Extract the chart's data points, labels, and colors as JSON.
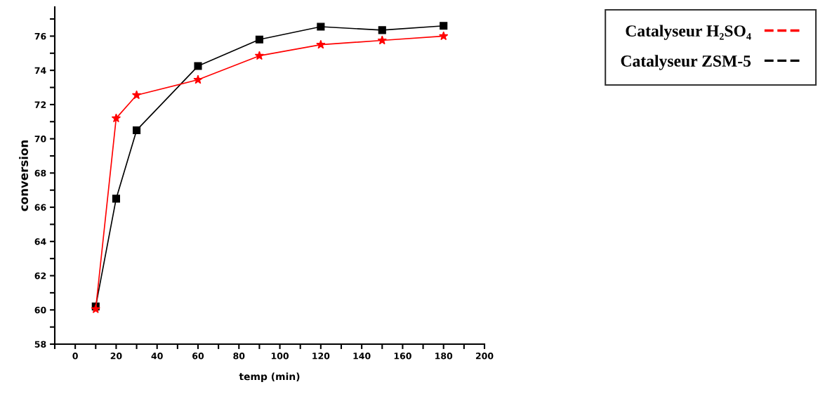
{
  "chart_data": {
    "type": "line",
    "xlabel": "temp (min)",
    "ylabel": "conversion",
    "x": [
      10,
      20,
      30,
      60,
      90,
      120,
      150,
      180
    ],
    "series": [
      {
        "name": "Catalyseur H₂SO₄",
        "color": "#ff0000",
        "marker": "star",
        "values": [
          60.05,
          71.2,
          72.55,
          73.45,
          74.85,
          75.5,
          75.75,
          76.0
        ]
      },
      {
        "name": "Catalyseur ZSM-5",
        "color": "#000000",
        "marker": "square",
        "values": [
          60.2,
          66.5,
          70.5,
          74.25,
          75.8,
          76.55,
          76.35,
          76.6
        ]
      }
    ],
    "xlim": [
      -10,
      200
    ],
    "ylim": [
      58,
      77.7
    ],
    "xticks": [
      {
        "value": -10,
        "label": null
      },
      0,
      {
        "value": 10,
        "label": null
      },
      20,
      {
        "value": 30,
        "label": null
      },
      40,
      {
        "value": 50,
        "label": null
      },
      60,
      {
        "value": 70,
        "label": null
      },
      80,
      {
        "value": 90,
        "label": null
      },
      100,
      {
        "value": 110,
        "label": null
      },
      120,
      {
        "value": 130,
        "label": null
      },
      140,
      {
        "value": 150,
        "label": null
      },
      160,
      {
        "value": 170,
        "label": null
      },
      180,
      {
        "value": 190,
        "label": null
      },
      200
    ],
    "yticks": [
      58,
      {
        "value": 59,
        "label": null
      },
      60,
      {
        "value": 61,
        "label": null
      },
      62,
      {
        "value": 63,
        "label": null
      },
      64,
      {
        "value": 65,
        "label": null
      },
      66,
      {
        "value": 67,
        "label": null
      },
      68,
      {
        "value": 69,
        "label": null
      },
      70,
      {
        "value": 71,
        "label": null
      },
      72,
      {
        "value": 73,
        "label": null
      },
      74,
      {
        "value": 75,
        "label": null
      },
      76,
      {
        "value": 77,
        "label": null
      }
    ],
    "grid": false,
    "legend": "top right",
    "line_style": "solid"
  }
}
